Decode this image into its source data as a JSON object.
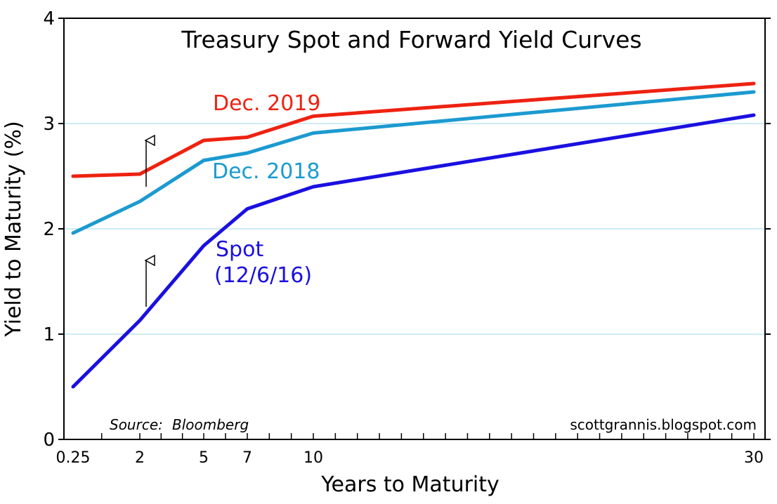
{
  "chart_data": {
    "type": "line",
    "title": "Treasury Spot and Forward Yield Curves",
    "xlabel": "Years to Maturity",
    "ylabel": "Yield to Maturity (%)",
    "xlim": [
      0,
      30
    ],
    "ylim": [
      0,
      4
    ],
    "x_ticks": [
      0.25,
      2,
      5,
      7,
      10,
      30
    ],
    "x_tick_labels": [
      "0.25",
      "2",
      "5",
      "7",
      "10",
      "30"
    ],
    "y_ticks": [
      0,
      1,
      2,
      3,
      4
    ],
    "y_tick_labels": [
      "0",
      "1",
      "2",
      "3",
      "4"
    ],
    "grid": "horizontal",
    "series": [
      {
        "name": "Dec. 2019",
        "color": "#ee2211",
        "x": [
          0.25,
          2,
          5,
          7,
          10,
          30
        ],
        "values": [
          2.5,
          2.52,
          2.84,
          2.87,
          3.07,
          3.38
        ]
      },
      {
        "name": "Dec. 2018",
        "color": "#1b9ad0",
        "x": [
          0.25,
          2,
          5,
          7,
          10,
          30
        ],
        "values": [
          1.96,
          2.26,
          2.65,
          2.72,
          2.91,
          3.3
        ]
      },
      {
        "name": "Spot\n(12/6/16)",
        "label_lines": [
          "Spot",
          "(12/6/16)"
        ],
        "color": "#1a10e0",
        "x": [
          0.25,
          2,
          5,
          7,
          10,
          30
        ],
        "values": [
          0.5,
          1.13,
          1.84,
          2.19,
          2.4,
          3.08
        ]
      }
    ],
    "annotations": {
      "source_prefix": "Source:",
      "source_name": "Bloomberg",
      "website": "scottgrannis.blogspot.com",
      "arrows": [
        {
          "x": 2,
          "y_from": 1.26,
          "y_to": 1.7
        },
        {
          "x": 2,
          "y_from": 2.4,
          "y_to": 2.84
        }
      ]
    }
  }
}
